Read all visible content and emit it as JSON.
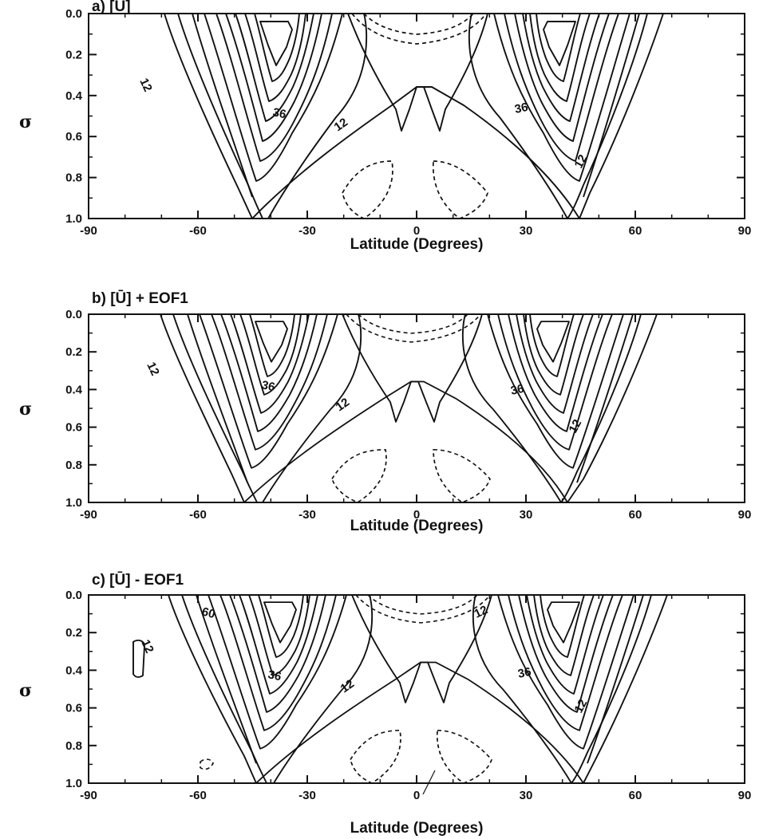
{
  "chart_data": [
    {
      "type": "contour",
      "title": "a) [Ū]",
      "xlabel": "Latitude (Degrees)",
      "ylabel": "σ",
      "xlim": [
        -90,
        90
      ],
      "ylim": [
        1.0,
        0.0
      ],
      "xticks": [
        -90,
        -60,
        -30,
        0,
        30,
        60,
        90
      ],
      "yticks": [
        "0.0",
        "0.2",
        "0.4",
        "0.6",
        "0.8",
        "1.0"
      ],
      "contour_labels": [
        "12",
        "36",
        "12",
        "36",
        "12"
      ],
      "jets": [
        {
          "lat": -40,
          "sigma_core": 0.15,
          "max_value": 60
        },
        {
          "lat": 40,
          "sigma_core": 0.15,
          "max_value": 60
        }
      ],
      "negative_regions": [
        {
          "lat": 0,
          "sigma": 0.05
        },
        {
          "lat": -10,
          "sigma": 0.88
        },
        {
          "lat": 10,
          "sigma": 0.88
        }
      ]
    },
    {
      "type": "contour",
      "title": "b) [Ū] + EOF1",
      "xlabel": "Latitude (Degrees)",
      "ylabel": "σ",
      "xlim": [
        -90,
        90
      ],
      "ylim": [
        1.0,
        0.0
      ],
      "xticks": [
        -90,
        -60,
        -30,
        0,
        30,
        60,
        90
      ],
      "yticks": [
        "0.0",
        "0.2",
        "0.4",
        "0.6",
        "0.8",
        "1.0"
      ],
      "contour_labels": [
        "12",
        "36",
        "12",
        "36",
        "12"
      ],
      "jets": [
        {
          "lat": -42,
          "sigma_core": 0.15,
          "max_value": 60
        },
        {
          "lat": 38,
          "sigma_core": 0.15,
          "max_value": 60
        }
      ],
      "negative_regions": [
        {
          "lat": 0,
          "sigma": 0.05
        },
        {
          "lat": -12,
          "sigma": 0.88
        },
        {
          "lat": 12,
          "sigma": 0.88
        }
      ]
    },
    {
      "type": "contour",
      "title": "c) [Ū] - EOF1",
      "xlabel": "Latitude (Degrees)",
      "ylabel": "σ",
      "xlim": [
        -90,
        90
      ],
      "ylim": [
        1.0,
        0.0
      ],
      "xticks": [
        -90,
        -60,
        -30,
        0,
        30,
        60,
        90
      ],
      "yticks": [
        "0.0",
        "0.2",
        "0.4",
        "0.6",
        "0.8",
        "1.0"
      ],
      "contour_labels": [
        "12",
        "60",
        "12",
        "12",
        "36",
        "12",
        "36",
        "12"
      ],
      "jets": [
        {
          "lat": -38,
          "sigma_core": 0.15,
          "max_value": 60
        },
        {
          "lat": 42,
          "sigma_core": 0.15,
          "max_value": 60
        }
      ],
      "negative_regions": [
        {
          "lat": 0,
          "sigma": 0.05
        },
        {
          "lat": -10,
          "sigma": 0.88
        },
        {
          "lat": 10,
          "sigma": 0.88
        },
        {
          "lat": -58,
          "sigma": 0.88
        }
      ]
    }
  ]
}
